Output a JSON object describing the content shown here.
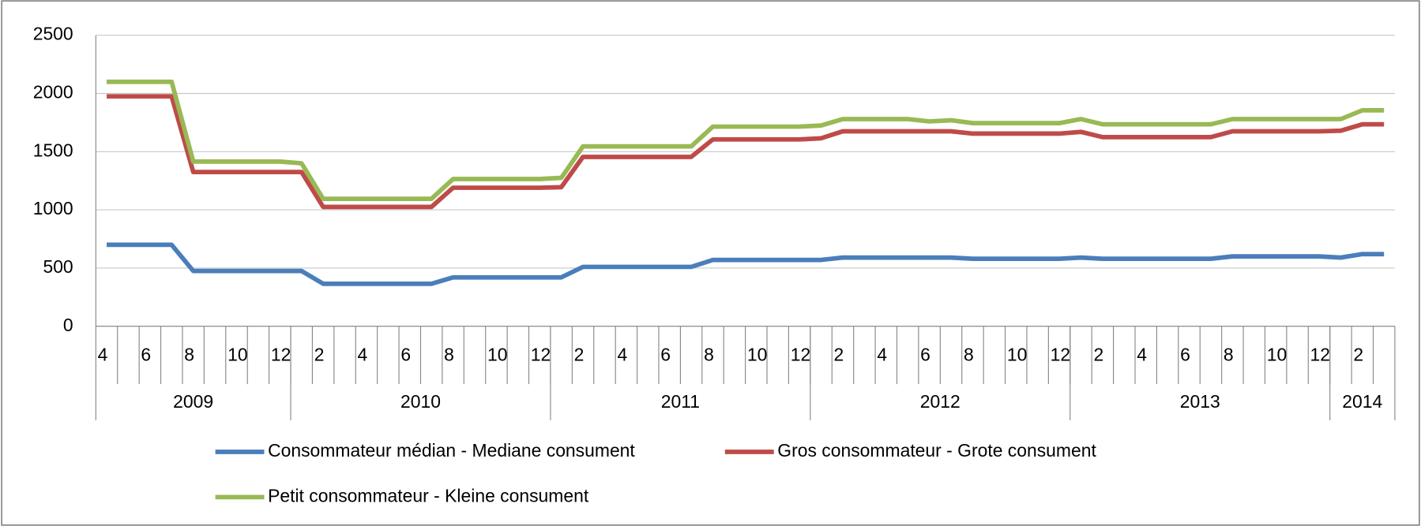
{
  "chart_data": {
    "type": "line",
    "categories": [
      "4",
      null,
      "6",
      null,
      "8",
      null,
      "10",
      null,
      "12",
      null,
      "2",
      null,
      "4",
      null,
      "6",
      null,
      "8",
      null,
      "10",
      null,
      "12",
      null,
      "2",
      null,
      "4",
      null,
      "6",
      null,
      "8",
      null,
      "10",
      null,
      "12",
      null,
      "2",
      null,
      "4",
      null,
      "6",
      null,
      "8",
      null,
      "10",
      null,
      "12",
      null,
      "2",
      null,
      "4",
      null,
      "6",
      null,
      "8",
      null,
      "10",
      null,
      "12",
      null,
      "2",
      null
    ],
    "x_groups": [
      "2009",
      "2010",
      "2011",
      "2012",
      "2013",
      "2014"
    ],
    "series": [
      {
        "name": "Consommateur médian - Mediane consument",
        "color": "#4a7ebb",
        "values": [
          700,
          700,
          700,
          700,
          475,
          475,
          475,
          475,
          475,
          475,
          365,
          365,
          365,
          365,
          365,
          365,
          420,
          420,
          420,
          420,
          420,
          420,
          510,
          510,
          510,
          510,
          510,
          510,
          570,
          570,
          570,
          570,
          570,
          570,
          590,
          590,
          590,
          590,
          590,
          590,
          580,
          580,
          580,
          580,
          580,
          590,
          580,
          580,
          580,
          580,
          580,
          580,
          600,
          600,
          600,
          600,
          600,
          590,
          620,
          620
        ]
      },
      {
        "name": "Gros consommateur - Grote consument",
        "color": "#be4b48",
        "values": [
          1975,
          1975,
          1975,
          1975,
          1325,
          1325,
          1325,
          1325,
          1325,
          1325,
          1025,
          1025,
          1025,
          1025,
          1025,
          1025,
          1190,
          1190,
          1190,
          1190,
          1190,
          1195,
          1455,
          1455,
          1455,
          1455,
          1455,
          1455,
          1605,
          1605,
          1605,
          1605,
          1605,
          1615,
          1675,
          1675,
          1675,
          1675,
          1675,
          1675,
          1655,
          1655,
          1655,
          1655,
          1655,
          1670,
          1625,
          1625,
          1625,
          1625,
          1625,
          1625,
          1675,
          1675,
          1675,
          1675,
          1675,
          1680,
          1735,
          1735
        ]
      },
      {
        "name": "Petit consommateur - Kleine consument",
        "color": "#98b954",
        "values": [
          2100,
          2100,
          2100,
          2100,
          1415,
          1415,
          1415,
          1415,
          1415,
          1400,
          1095,
          1095,
          1095,
          1095,
          1095,
          1095,
          1265,
          1265,
          1265,
          1265,
          1265,
          1275,
          1545,
          1545,
          1545,
          1545,
          1545,
          1545,
          1715,
          1715,
          1715,
          1715,
          1715,
          1725,
          1780,
          1780,
          1780,
          1780,
          1760,
          1770,
          1745,
          1745,
          1745,
          1745,
          1745,
          1780,
          1735,
          1735,
          1735,
          1735,
          1735,
          1735,
          1780,
          1780,
          1780,
          1780,
          1780,
          1780,
          1855,
          1855
        ]
      }
    ],
    "ylim": [
      0,
      2500
    ],
    "yticks": [
      0,
      500,
      1000,
      1500,
      2000,
      2500
    ],
    "grid": true,
    "legend": "bottom"
  }
}
